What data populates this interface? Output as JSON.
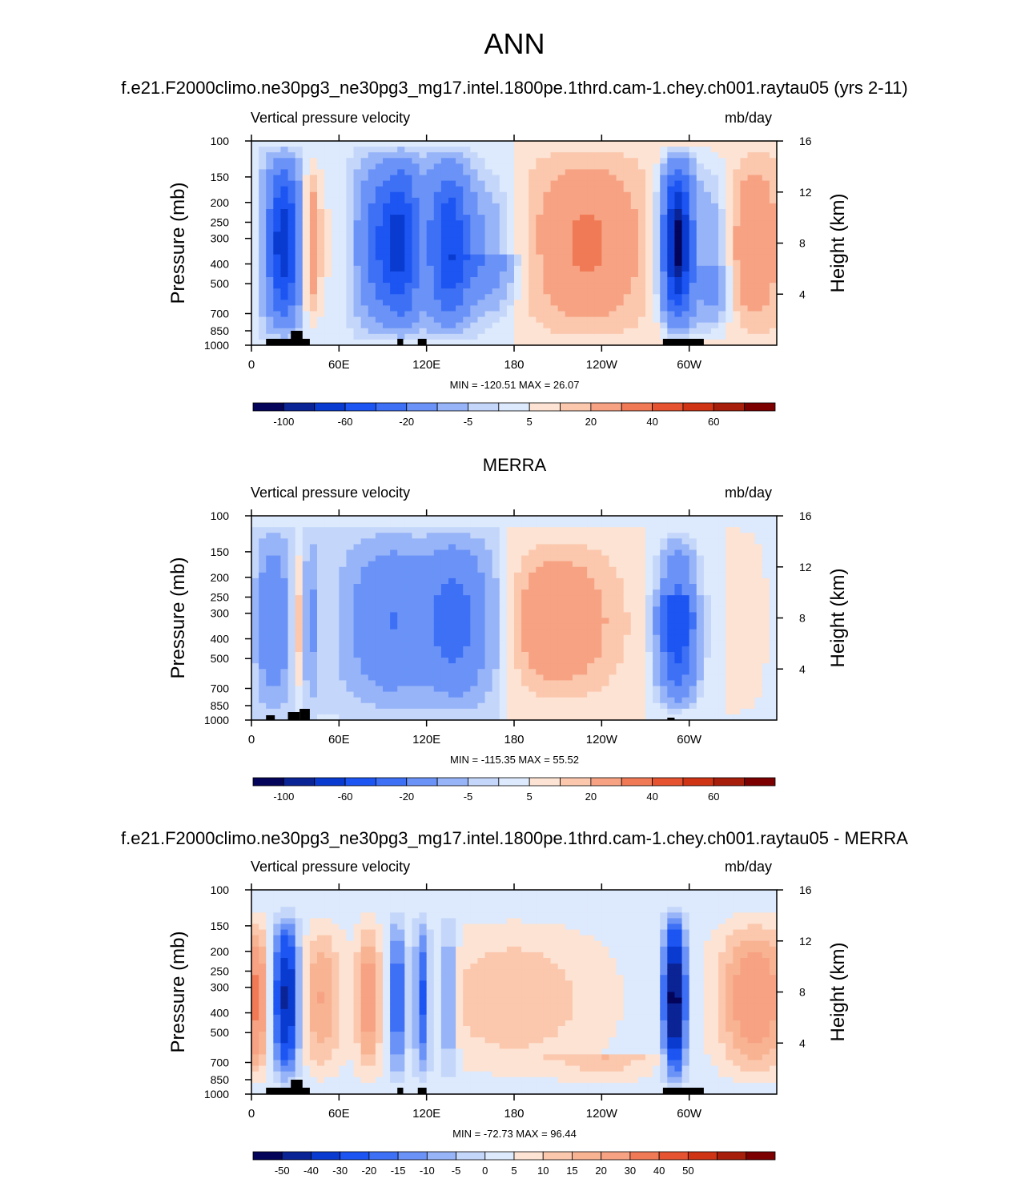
{
  "main_title": "ANN",
  "panels": [
    {
      "title": "f.e21.F2000climo.ne30pg3_ne30pg3_mg17.intel.1800pe.1thrd.cam-1.chey.ch001.raytau05 (yrs 2-11)",
      "variable": "Vertical pressure velocity",
      "units": "mb/day",
      "minmax": "MIN = -120.51  MAX =  26.07"
    },
    {
      "title": "MERRA",
      "variable": "Vertical pressure velocity",
      "units": "mb/day",
      "minmax": "MIN = -115.35  MAX =  55.52"
    },
    {
      "title": "f.e21.F2000climo.ne30pg3_ne30pg3_mg17.intel.1800pe.1thrd.cam-1.chey.ch001.raytau05 - MERRA",
      "variable": "Vertical pressure velocity",
      "units": "mb/day",
      "minmax": "MIN = -72.73  MAX =  96.44"
    }
  ],
  "chart_data": [
    {
      "type": "heatmap",
      "title": "f.e21.F2000climo.ne30pg3_ne30pg3_mg17.intel.1800pe.1thrd.cam-1.chey.ch001.raytau05 (yrs 2-11)",
      "xlabel": "",
      "ylabel": "Pressure (mb)",
      "ylabel_right": "Height (km)",
      "x_ticks": [
        "0",
        "60E",
        "120E",
        "180",
        "120W",
        "60W"
      ],
      "x_tick_lons": [
        0,
        60,
        120,
        180,
        240,
        300
      ],
      "xlim": [
        0,
        360
      ],
      "y_ticks": [
        "100",
        "150",
        "200",
        "250",
        "300",
        "400",
        "500",
        "700",
        "850",
        "1000"
      ],
      "y_tick_values": [
        100,
        150,
        200,
        250,
        300,
        400,
        500,
        700,
        850,
        1000
      ],
      "ylim": [
        1000,
        100
      ],
      "y_right_ticks": [
        "4",
        "8",
        "12",
        "16"
      ],
      "min": -120.51,
      "max": 26.07,
      "colorbar_labels": [
        "-100",
        "-60",
        "-20",
        "-5",
        "5",
        "20",
        "40",
        "60"
      ],
      "colorbar_levels": [
        -120,
        -100,
        -80,
        -60,
        -40,
        -20,
        -10,
        -5,
        0,
        5,
        10,
        20,
        30,
        40,
        50,
        60
      ],
      "features": [
        {
          "lon": 20,
          "p": 380,
          "value": -60
        },
        {
          "lon": 40,
          "p": 380,
          "value": 20
        },
        {
          "lon": 100,
          "p": 380,
          "value": -60
        },
        {
          "lon": 135,
          "p": 380,
          "value": -40
        },
        {
          "lon": 230,
          "p": 450,
          "value": 20
        },
        {
          "lon": 290,
          "p": 400,
          "value": -100
        },
        {
          "lon": 340,
          "p": 350,
          "value": 20
        }
      ]
    },
    {
      "type": "heatmap",
      "title": "MERRA",
      "ylabel": "Pressure (mb)",
      "ylabel_right": "Height (km)",
      "x_ticks": [
        "0",
        "60E",
        "120E",
        "180",
        "120W",
        "60W"
      ],
      "xlim": [
        0,
        360
      ],
      "y_ticks": [
        "100",
        "150",
        "200",
        "250",
        "300",
        "400",
        "500",
        "700",
        "850",
        "1000"
      ],
      "ylim": [
        1000,
        100
      ],
      "y_right_ticks": [
        "4",
        "8",
        "12",
        "16"
      ],
      "min": -115.35,
      "max": 55.52,
      "colorbar_labels": [
        "-100",
        "-60",
        "-20",
        "-5",
        "5",
        "20",
        "40",
        "60"
      ],
      "features": [
        {
          "lon": 15,
          "p": 350,
          "value": -40
        },
        {
          "lon": 35,
          "p": 600,
          "value": 10
        },
        {
          "lon": 100,
          "p": 400,
          "value": -40
        },
        {
          "lon": 140,
          "p": 400,
          "value": -40
        },
        {
          "lon": 210,
          "p": 400,
          "value": 10
        },
        {
          "lon": 290,
          "p": 500,
          "value": -60
        }
      ]
    },
    {
      "type": "heatmap",
      "title": "f.e21.F2000climo.ne30pg3_ne30pg3_mg17.intel.1800pe.1thrd.cam-1.chey.ch001.raytau05 - MERRA",
      "ylabel": "Pressure (mb)",
      "ylabel_right": "Height (km)",
      "x_ticks": [
        "0",
        "60E",
        "120E",
        "180",
        "120W",
        "60W"
      ],
      "xlim": [
        0,
        360
      ],
      "y_ticks": [
        "100",
        "150",
        "200",
        "250",
        "300",
        "400",
        "500",
        "700",
        "850",
        "1000"
      ],
      "ylim": [
        1000,
        100
      ],
      "y_right_ticks": [
        "4",
        "8",
        "12",
        "16"
      ],
      "min": -72.73,
      "max": 96.44,
      "colorbar_labels": [
        "-50",
        "-40",
        "-30",
        "-20",
        "-15",
        "-10",
        "-5",
        "0",
        "5",
        "10",
        "15",
        "20",
        "30",
        "40",
        "50"
      ],
      "colorbar_levels": [
        -60,
        -50,
        -40,
        -30,
        -20,
        -15,
        -10,
        -5,
        0,
        5,
        10,
        15,
        20,
        30,
        40,
        50,
        60
      ],
      "features": [
        {
          "lon": 5,
          "p": 350,
          "value": 20
        },
        {
          "lon": 25,
          "p": 400,
          "value": -40
        },
        {
          "lon": 50,
          "p": 350,
          "value": 15
        },
        {
          "lon": 80,
          "p": 400,
          "value": 20
        },
        {
          "lon": 100,
          "p": 350,
          "value": -30
        },
        {
          "lon": 115,
          "p": 350,
          "value": -30
        },
        {
          "lon": 135,
          "p": 350,
          "value": -20
        },
        {
          "lon": 290,
          "p": 400,
          "value": -50
        },
        {
          "lon": 340,
          "p": 400,
          "value": 30
        }
      ]
    }
  ],
  "axis_labels": {
    "pressure": "Pressure (mb)",
    "height": "Height (km)"
  },
  "colors": {
    "palette_ref": [
      "#03045a",
      "#0a2395",
      "#0a3bd0",
      "#1c55f2",
      "#3d70f5",
      "#6b93f7",
      "#97b4f8",
      "#c4d6fa",
      "#dde9fc",
      "#fde3d3",
      "#fbc7ad",
      "#f6a283",
      "#f07a55",
      "#e55330",
      "#cf3414",
      "#a71f0a",
      "#7c0000"
    ],
    "palette_diff": [
      "#03045a",
      "#0a2395",
      "#0a3bd0",
      "#1c55f2",
      "#3d70f5",
      "#6b93f7",
      "#97b4f8",
      "#c4d6fa",
      "#dde9fc",
      "#fde3d3",
      "#fbc7ad",
      "#f8b393",
      "#f6a283",
      "#f07a55",
      "#e55330",
      "#cf3414",
      "#a71f0a",
      "#7c0000"
    ],
    "topography": "#000000"
  }
}
